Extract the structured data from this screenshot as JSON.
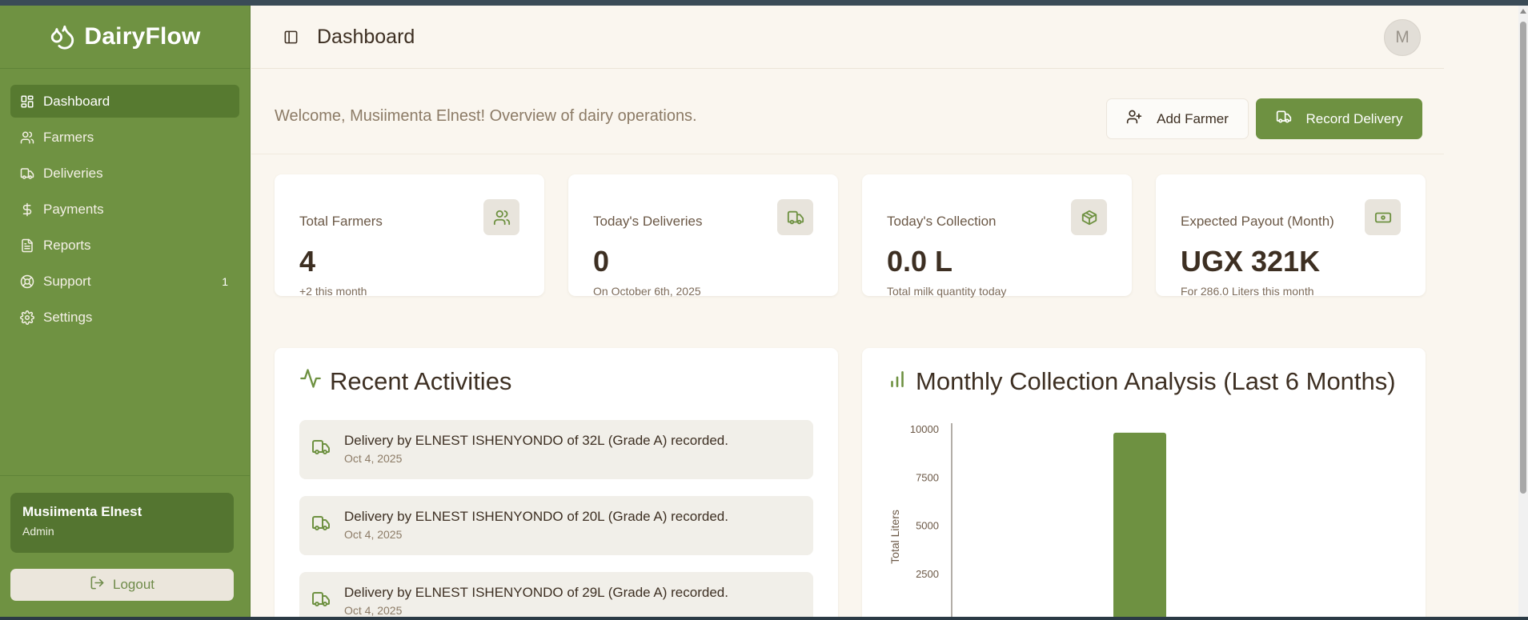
{
  "sidebar": {
    "brand": "DairyFlow",
    "items": [
      {
        "label": "Dashboard",
        "icon": "grid-icon",
        "active": true
      },
      {
        "label": "Farmers",
        "icon": "users-icon"
      },
      {
        "label": "Deliveries",
        "icon": "truck-icon"
      },
      {
        "label": "Payments",
        "icon": "dollar-icon"
      },
      {
        "label": "Reports",
        "icon": "document-icon"
      },
      {
        "label": "Support",
        "icon": "lifebuoy-icon",
        "badge": "1"
      },
      {
        "label": "Settings",
        "icon": "gear-icon"
      }
    ],
    "user": {
      "name": "Musiimenta Elnest",
      "role": "Admin"
    },
    "logout_label": "Logout"
  },
  "header": {
    "title": "Dashboard",
    "avatar_initial": "M"
  },
  "welcome": "Welcome, Musiimenta Elnest! Overview of dairy operations.",
  "actions": {
    "add_farmer": "Add Farmer",
    "record_delivery": "Record Delivery"
  },
  "stats": [
    {
      "label": "Total Farmers",
      "value": "4",
      "sub": "+2 this month",
      "icon": "users-icon"
    },
    {
      "label": "Today's Deliveries",
      "value": "0",
      "sub": "On October 6th, 2025",
      "icon": "truck-icon"
    },
    {
      "label": "Today's Collection",
      "value": "0.0 L",
      "sub": "Total milk quantity today",
      "icon": "package-icon"
    },
    {
      "label": "Expected Payout (Month)",
      "value": "UGX 321K",
      "sub": "For 286.0 Liters this month",
      "icon": "banknote-icon"
    }
  ],
  "activities": {
    "title": "Recent Activities",
    "items": [
      {
        "text": "Delivery by ELNEST ISHENYONDO of 32L (Grade A) recorded.",
        "date": "Oct 4, 2025"
      },
      {
        "text": "Delivery by ELNEST ISHENYONDO of 20L (Grade A) recorded.",
        "date": "Oct 4, 2025"
      },
      {
        "text": "Delivery by ELNEST ISHENYONDO of 29L (Grade A) recorded.",
        "date": "Oct 4, 2025"
      }
    ]
  },
  "chart_data": {
    "type": "bar",
    "title": "Monthly Collection Analysis (Last 6 Months)",
    "ylabel": "Total Liters",
    "yticks": [
      2500,
      5000,
      7500,
      10000
    ],
    "ylim": [
      0,
      10000
    ],
    "values": [
      9800
    ],
    "color": "#6e9141"
  },
  "colors": {
    "sidebar": "#6f9242",
    "accent": "#6e9141",
    "background": "#faf6ef"
  }
}
